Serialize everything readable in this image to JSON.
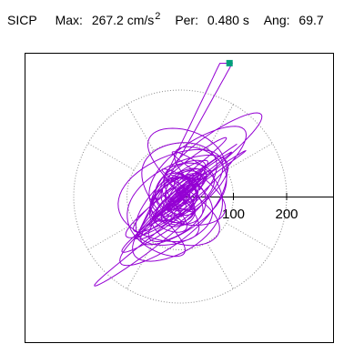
{
  "header": {
    "component": "SICP",
    "max_label": "Max:",
    "max_value": "267.2 cm/s",
    "max_exp": "2",
    "per_label": "Per:",
    "per_value": "0.480 s",
    "ang_label": "Ang:",
    "ang_value": "69.7"
  },
  "chart_data": {
    "type": "scatter",
    "description_free": true,
    "radial_ticks": [
      100,
      200
    ],
    "radial_tick_labels": [
      "100",
      "200"
    ],
    "ring_values": [
      100,
      200
    ],
    "spoke_angles_deg": [
      30,
      60,
      120,
      150,
      210,
      240,
      300,
      330
    ],
    "max_magnitude": 267.2,
    "peak_angle_deg": 69.7,
    "peak_point": [
      92.6,
      250.6
    ],
    "colors": {
      "trace": "#9400D3",
      "marker": "#009f7a",
      "grid": "#8a8a8a"
    },
    "grid": true
  }
}
